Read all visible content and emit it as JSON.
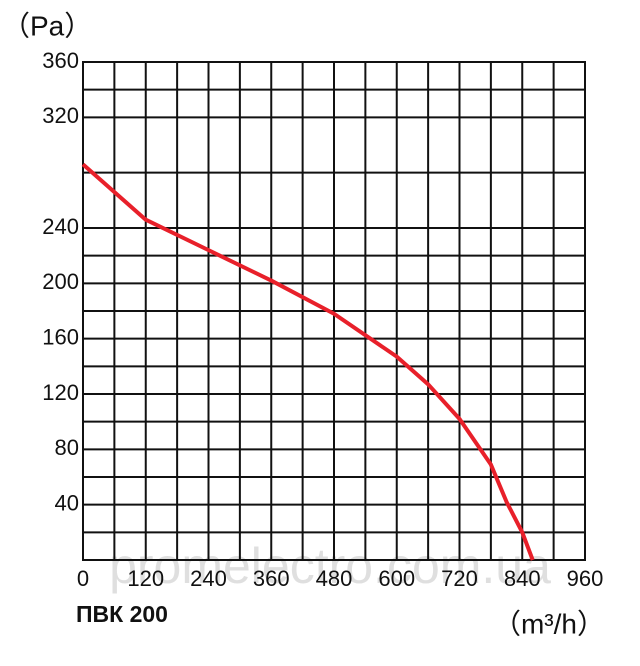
{
  "chart_data": {
    "type": "line",
    "y_label": "（Pa）",
    "x_label": "（m³/h）",
    "model": "ПВК 200",
    "watermark": "promelectro.com.ua",
    "x": [
      0,
      120,
      240,
      360,
      480,
      600,
      660,
      720,
      780,
      810,
      840,
      860
    ],
    "series": [
      {
        "name": "ПВК 200",
        "color": "#e8202a",
        "values": [
          286,
          246,
          224,
          202,
          178,
          147,
          127,
          102,
          69,
          42,
          20,
          0
        ]
      }
    ],
    "xlim": [
      0,
      960
    ],
    "xticks": [
      0,
      120,
      240,
      360,
      480,
      600,
      720,
      840,
      960
    ],
    "ylim": [
      0,
      360
    ],
    "yticks": [
      40,
      80,
      120,
      160,
      200,
      240,
      320,
      360
    ],
    "grid": true
  }
}
